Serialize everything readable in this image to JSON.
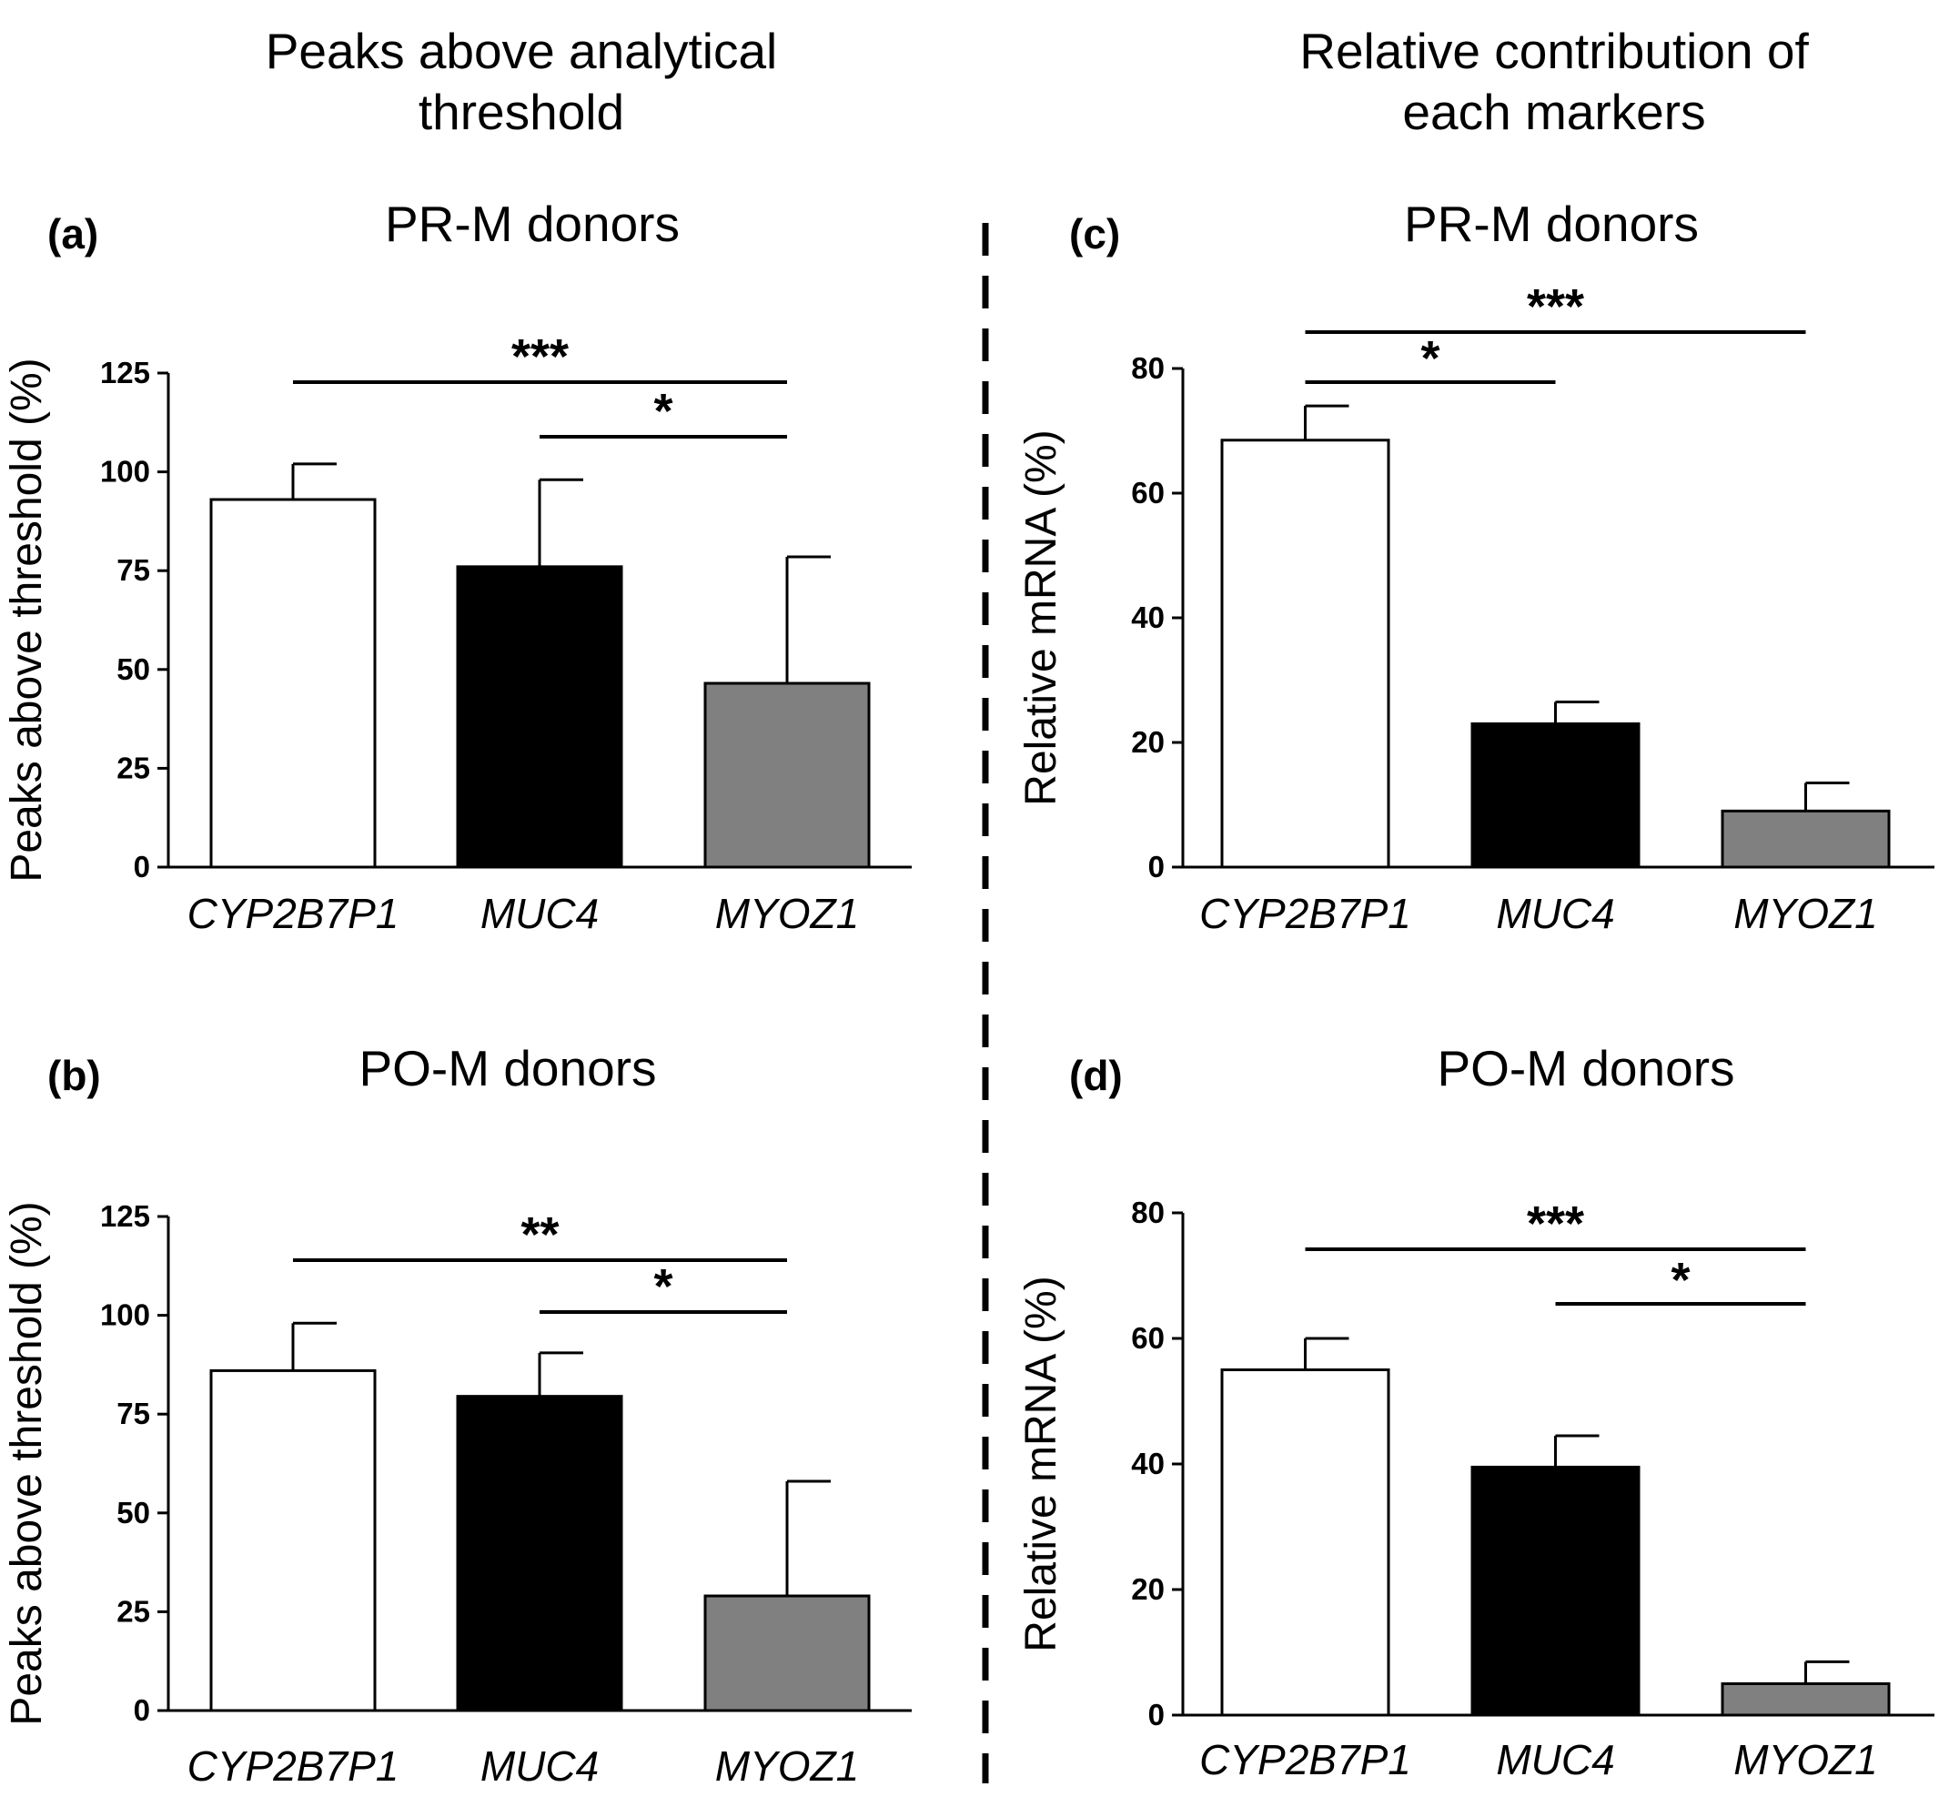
{
  "column_titles": {
    "left": [
      "Peaks above analytical",
      "threshold"
    ],
    "right": [
      "Relative contribution of",
      "each markers"
    ]
  },
  "colors": {
    "bar_fills": [
      "#ffffff",
      "#000000",
      "#808080"
    ],
    "stroke": "#000000"
  },
  "chart_data": [
    {
      "id": "a",
      "type": "bar",
      "panel_label": "(a)",
      "title": "PR-M donors",
      "categories": [
        "CYP2B7P1",
        "MUC4",
        "MYOZ1"
      ],
      "values": [
        93,
        76,
        46.5
      ],
      "errors": [
        9,
        22,
        32
      ],
      "ylabel": "Peaks above threshold (%)",
      "ylim": [
        0,
        125
      ],
      "yticks": [
        0,
        25,
        50,
        75,
        100,
        125
      ],
      "ytick_labels": [
        "0",
        "25",
        "50",
        "75",
        "100",
        "125"
      ],
      "significance": [
        {
          "from": 0,
          "to": 2,
          "label": "***",
          "level": 1
        },
        {
          "from": 1,
          "to": 2,
          "label": "*",
          "level": 0
        }
      ]
    },
    {
      "id": "b",
      "type": "bar",
      "panel_label": "(b)",
      "title": "PO-M donors",
      "categories": [
        "CYP2B7P1",
        "MUC4",
        "MYOZ1"
      ],
      "values": [
        86,
        79.5,
        29
      ],
      "errors": [
        12,
        11,
        29
      ],
      "ylabel": "Peaks above threshold (%)",
      "ylim": [
        0,
        125
      ],
      "yticks": [
        0,
        25,
        50,
        75,
        100,
        125
      ],
      "ytick_labels": [
        "0",
        "25",
        "50",
        "75",
        "100",
        "125"
      ],
      "significance": [
        {
          "from": 0,
          "to": 2,
          "label": "**",
          "level": 1
        },
        {
          "from": 1,
          "to": 2,
          "label": "*",
          "level": 0
        }
      ]
    },
    {
      "id": "c",
      "type": "bar",
      "panel_label": "(c)",
      "title": "PR-M donors",
      "categories": [
        "CYP2B7P1",
        "MUC4",
        "MYOZ1"
      ],
      "values": [
        68.5,
        23,
        9
      ],
      "errors": [
        5.5,
        3.5,
        4.5
      ],
      "ylabel": "Relative mRNA  (%)",
      "ylim": [
        0,
        80
      ],
      "yticks": [
        0,
        20,
        40,
        60,
        80
      ],
      "ytick_labels": [
        "0",
        "20",
        "40",
        "60",
        "80"
      ],
      "significance": [
        {
          "from": 0,
          "to": 2,
          "label": "***",
          "level": 1
        },
        {
          "from": 0,
          "to": 1,
          "label": "*",
          "level": 0
        }
      ]
    },
    {
      "id": "d",
      "type": "bar",
      "panel_label": "(d)",
      "title": "PO-M donors",
      "categories": [
        "CYP2B7P1",
        "MUC4",
        "MYOZ1"
      ],
      "values": [
        55,
        39.5,
        5
      ],
      "errors": [
        5,
        5,
        3.5
      ],
      "ylabel": "Relative mRNA  (%)",
      "ylim": [
        0,
        80
      ],
      "yticks": [
        0,
        20,
        40,
        60,
        80
      ],
      "ytick_labels": [
        "0",
        "20",
        "40",
        "60",
        "80"
      ],
      "significance": [
        {
          "from": 0,
          "to": 2,
          "label": "***",
          "level": 1
        },
        {
          "from": 1,
          "to": 2,
          "label": "*",
          "level": 0
        }
      ]
    }
  ]
}
